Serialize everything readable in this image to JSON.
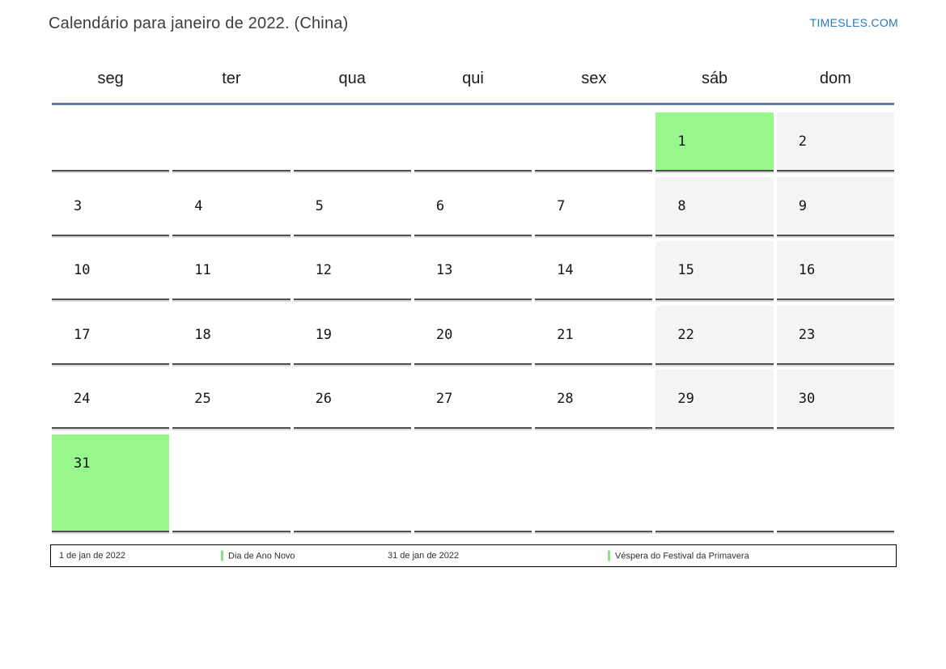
{
  "header": {
    "title": "Calendário para janeiro de 2022. (China)",
    "brand": "TIMESLES.COM"
  },
  "calendar": {
    "weekday_headers": [
      "seg",
      "ter",
      "qua",
      "qui",
      "sex",
      "sáb",
      "dom"
    ],
    "weeks": [
      [
        "",
        "",
        "",
        "",
        "",
        "1",
        "2"
      ],
      [
        "3",
        "4",
        "5",
        "6",
        "7",
        "8",
        "9"
      ],
      [
        "10",
        "11",
        "12",
        "13",
        "14",
        "15",
        "16"
      ],
      [
        "17",
        "18",
        "19",
        "20",
        "21",
        "22",
        "23"
      ],
      [
        "24",
        "25",
        "26",
        "27",
        "28",
        "29",
        "30"
      ],
      [
        "31",
        "",
        "",
        "",
        "",
        "",
        ""
      ]
    ],
    "holiday_days": [
      "1",
      "31"
    ],
    "colors": {
      "holiday": "#98F78C",
      "weekend": "#F4F4F4",
      "divider": "#5E7FA3",
      "brand": "#2878BE",
      "legend_marker": "#7DE97D"
    }
  },
  "legend": {
    "items": [
      {
        "date": "1 de jan de 2022",
        "name": "Dia de Ano Novo"
      },
      {
        "date": "31 de jan de 2022",
        "name": "Véspera do Festival da Primavera"
      }
    ]
  }
}
